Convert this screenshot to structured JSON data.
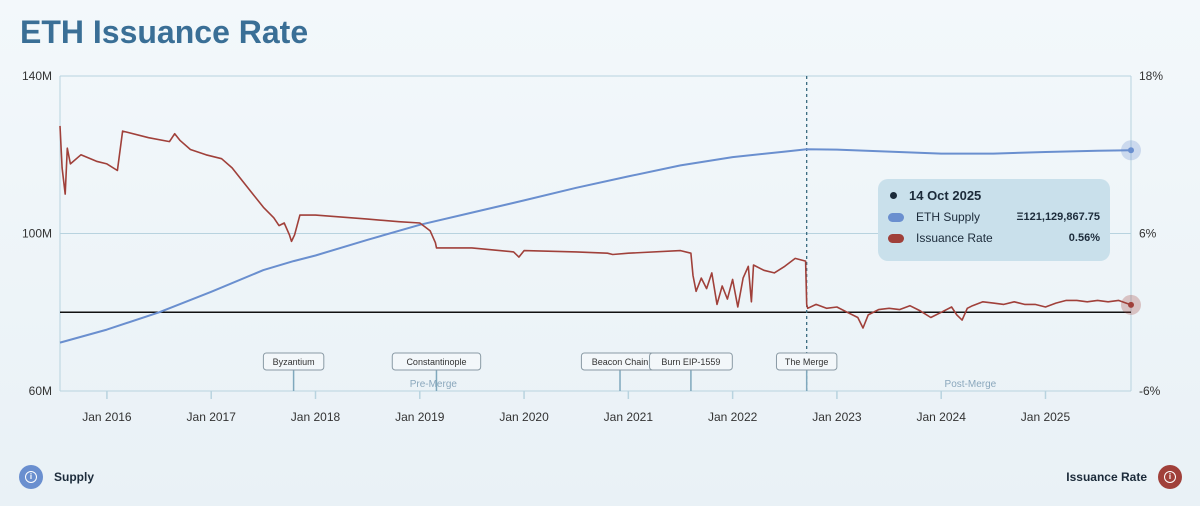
{
  "title": "ETH Issuance Rate",
  "colors": {
    "supply": "#6a8fcf",
    "issuance": "#a0403a",
    "accent": "#3a6f96"
  },
  "tooltip": {
    "date": "14 Oct 2025",
    "rows": [
      {
        "label": "ETH Supply",
        "value": "Ξ121,129,867.75"
      },
      {
        "label": "Issuance Rate",
        "value": "0.56%"
      }
    ]
  },
  "legend": {
    "left": {
      "label": "Supply",
      "icon": "info-icon"
    },
    "right": {
      "label": "Issuance Rate",
      "icon": "info-icon"
    }
  },
  "chart_data": {
    "type": "line",
    "title": "ETH Issuance Rate",
    "y_left": {
      "ticks": [
        "140M",
        "100M",
        "60M"
      ],
      "range": [
        60,
        140
      ],
      "unit": "M"
    },
    "y_right": {
      "ticks": [
        "18%",
        "6%",
        "-6%"
      ],
      "range": [
        -6,
        18
      ],
      "unit": "%"
    },
    "x_ticks": [
      "Jan 2016",
      "Jan 2017",
      "Jan 2018",
      "Jan 2019",
      "Jan 2020",
      "Jan 2021",
      "Jan 2022",
      "Jan 2023",
      "Jan 2024",
      "Jan 2025"
    ],
    "x_range": [
      2015.55,
      2025.82
    ],
    "reference_line_percent": 0,
    "events": [
      {
        "label": "Byzantium",
        "x": 2017.79
      },
      {
        "label": "Constantinople",
        "x": 2019.16
      },
      {
        "label": "Beacon Chain",
        "x": 2020.92
      },
      {
        "label": "Burn EIP-1559",
        "x": 2021.6
      },
      {
        "label": "The Merge",
        "x": 2022.71
      }
    ],
    "eras": [
      {
        "label": "Pre-Merge",
        "x": 2019.13
      },
      {
        "label": "Post-Merge",
        "x": 2024.28
      }
    ],
    "merge_x": 2022.71,
    "series": [
      {
        "name": "ETH Supply",
        "axis": "left",
        "points": [
          [
            2015.55,
            72.3
          ],
          [
            2016.0,
            75.6
          ],
          [
            2016.5,
            80.0
          ],
          [
            2017.0,
            85.2
          ],
          [
            2017.5,
            90.7
          ],
          [
            2017.79,
            93.0
          ],
          [
            2018.0,
            94.4
          ],
          [
            2018.5,
            98.4
          ],
          [
            2019.0,
            102.2
          ],
          [
            2019.5,
            105.3
          ],
          [
            2020.0,
            108.4
          ],
          [
            2020.5,
            111.6
          ],
          [
            2021.0,
            114.5
          ],
          [
            2021.5,
            117.3
          ],
          [
            2022.0,
            119.4
          ],
          [
            2022.5,
            120.8
          ],
          [
            2022.71,
            121.4
          ],
          [
            2023.0,
            121.3
          ],
          [
            2023.5,
            120.8
          ],
          [
            2024.0,
            120.3
          ],
          [
            2024.5,
            120.3
          ],
          [
            2025.0,
            120.7
          ],
          [
            2025.5,
            121.0
          ],
          [
            2025.82,
            121.13
          ]
        ]
      },
      {
        "name": "Issuance Rate",
        "axis": "right",
        "points": [
          [
            2015.55,
            14.2
          ],
          [
            2015.57,
            11.0
          ],
          [
            2015.6,
            9.0
          ],
          [
            2015.62,
            12.5
          ],
          [
            2015.65,
            11.3
          ],
          [
            2015.75,
            12.0
          ],
          [
            2015.9,
            11.5
          ],
          [
            2016.0,
            11.3
          ],
          [
            2016.1,
            10.8
          ],
          [
            2016.15,
            13.8
          ],
          [
            2016.4,
            13.3
          ],
          [
            2016.6,
            13.0
          ],
          [
            2016.65,
            13.6
          ],
          [
            2016.7,
            13.1
          ],
          [
            2016.8,
            12.4
          ],
          [
            2016.95,
            12.0
          ],
          [
            2017.1,
            11.7
          ],
          [
            2017.2,
            11.0
          ],
          [
            2017.3,
            10.0
          ],
          [
            2017.4,
            9.0
          ],
          [
            2017.5,
            8.0
          ],
          [
            2017.6,
            7.2
          ],
          [
            2017.65,
            6.6
          ],
          [
            2017.7,
            6.8
          ],
          [
            2017.75,
            5.9
          ],
          [
            2017.77,
            5.4
          ],
          [
            2017.8,
            5.9
          ],
          [
            2017.85,
            7.4
          ],
          [
            2018.0,
            7.4
          ],
          [
            2018.5,
            7.1
          ],
          [
            2018.8,
            6.9
          ],
          [
            2019.0,
            6.8
          ],
          [
            2019.05,
            6.5
          ],
          [
            2019.1,
            6.2
          ],
          [
            2019.15,
            5.3
          ],
          [
            2019.16,
            4.9
          ],
          [
            2019.5,
            4.9
          ],
          [
            2019.9,
            4.6
          ],
          [
            2019.95,
            4.2
          ],
          [
            2020.0,
            4.7
          ],
          [
            2020.5,
            4.6
          ],
          [
            2020.8,
            4.5
          ],
          [
            2020.85,
            4.4
          ],
          [
            2021.0,
            4.5
          ],
          [
            2021.5,
            4.7
          ],
          [
            2021.6,
            4.5
          ],
          [
            2021.62,
            2.8
          ],
          [
            2021.65,
            1.6
          ],
          [
            2021.7,
            2.6
          ],
          [
            2021.75,
            1.8
          ],
          [
            2021.8,
            3.0
          ],
          [
            2021.85,
            0.6
          ],
          [
            2021.9,
            2.0
          ],
          [
            2021.95,
            1.0
          ],
          [
            2022.0,
            2.5
          ],
          [
            2022.05,
            0.4
          ],
          [
            2022.1,
            2.6
          ],
          [
            2022.15,
            3.5
          ],
          [
            2022.18,
            0.8
          ],
          [
            2022.2,
            3.6
          ],
          [
            2022.3,
            3.2
          ],
          [
            2022.4,
            3.0
          ],
          [
            2022.5,
            3.5
          ],
          [
            2022.6,
            4.1
          ],
          [
            2022.7,
            3.9
          ],
          [
            2022.71,
            0.6
          ],
          [
            2022.72,
            0.3
          ],
          [
            2022.8,
            0.6
          ],
          [
            2022.9,
            0.3
          ],
          [
            2023.0,
            0.4
          ],
          [
            2023.1,
            0.0
          ],
          [
            2023.2,
            -0.4
          ],
          [
            2023.25,
            -1.2
          ],
          [
            2023.3,
            -0.2
          ],
          [
            2023.4,
            0.2
          ],
          [
            2023.5,
            0.3
          ],
          [
            2023.6,
            0.2
          ],
          [
            2023.7,
            0.5
          ],
          [
            2023.8,
            0.1
          ],
          [
            2023.9,
            -0.4
          ],
          [
            2024.0,
            0.0
          ],
          [
            2024.1,
            0.4
          ],
          [
            2024.15,
            -0.2
          ],
          [
            2024.2,
            -0.6
          ],
          [
            2024.25,
            0.3
          ],
          [
            2024.3,
            0.5
          ],
          [
            2024.4,
            0.8
          ],
          [
            2024.5,
            0.7
          ],
          [
            2024.6,
            0.6
          ],
          [
            2024.7,
            0.8
          ],
          [
            2024.8,
            0.6
          ],
          [
            2024.9,
            0.6
          ],
          [
            2025.0,
            0.4
          ],
          [
            2025.1,
            0.7
          ],
          [
            2025.2,
            0.9
          ],
          [
            2025.3,
            0.9
          ],
          [
            2025.4,
            0.8
          ],
          [
            2025.5,
            0.9
          ],
          [
            2025.6,
            0.8
          ],
          [
            2025.7,
            0.9
          ],
          [
            2025.82,
            0.56
          ]
        ]
      }
    ]
  }
}
